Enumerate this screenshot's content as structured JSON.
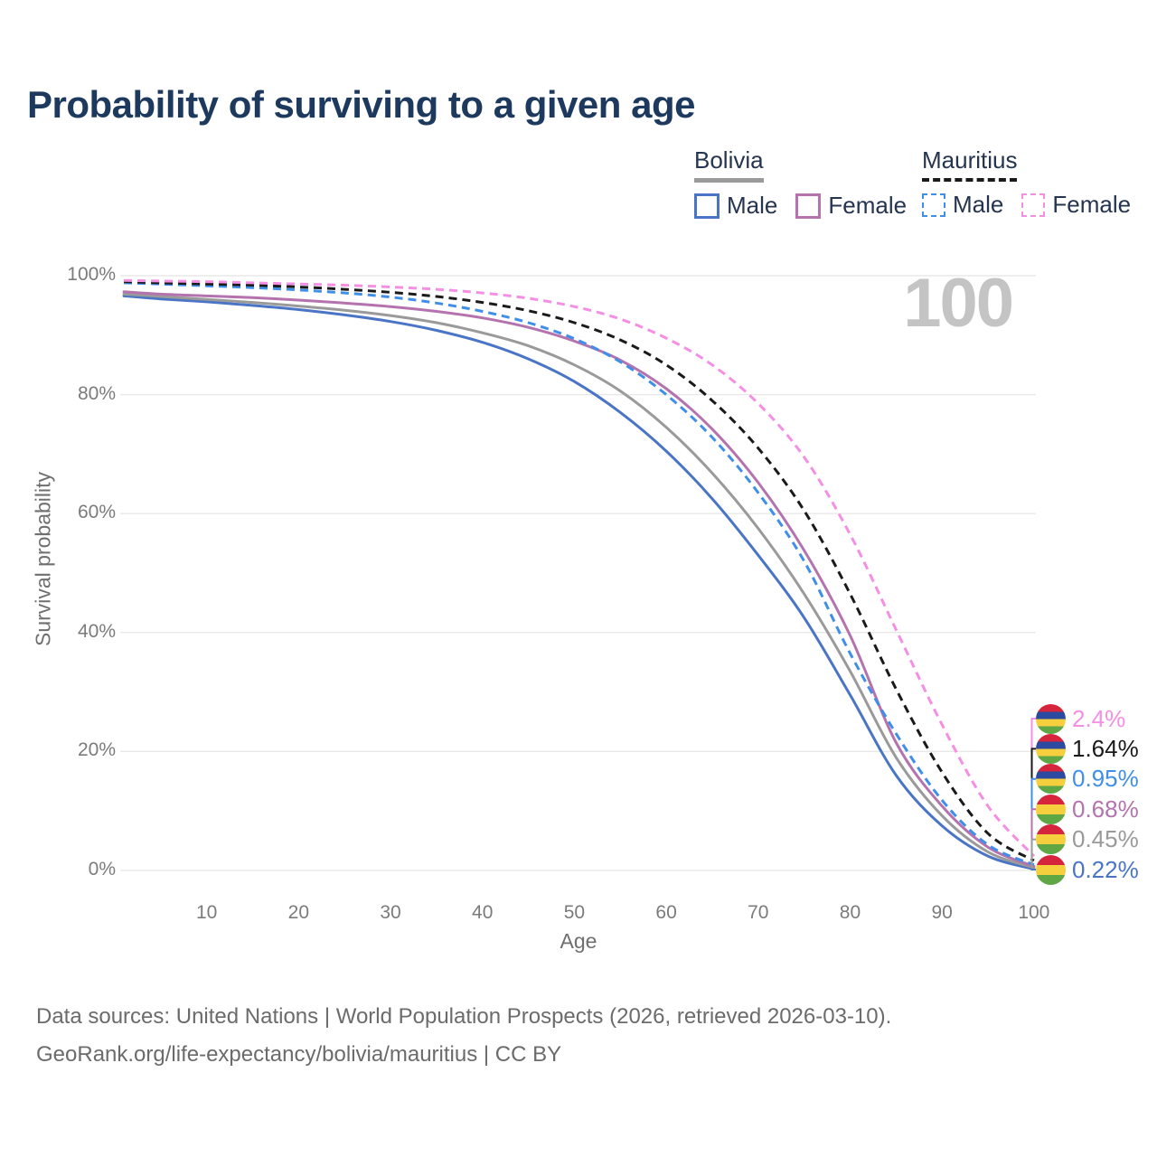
{
  "page": {
    "title": "Probability of surviving to a given age",
    "watermark": "100",
    "footer_line1": "Data sources: United Nations | World Population Prospects (2026, retrieved 2026-03-10).",
    "footer_line2": "GeoRank.org/life-expectancy/bolivia/mauritius | CC BY"
  },
  "legend": {
    "groups": [
      {
        "id": "bolivia",
        "label": "Bolivia",
        "line_style": "solid",
        "line_color": "#9a9a9a",
        "items": [
          {
            "id": "bolivia-male",
            "label": "Male",
            "color": "#4a74c6",
            "dashed": false
          },
          {
            "id": "bolivia-female",
            "label": "Female",
            "color": "#b473ae",
            "dashed": false
          }
        ]
      },
      {
        "id": "mauritius",
        "label": "Mauritius",
        "line_style": "dashed",
        "line_color": "#1a1a1a",
        "items": [
          {
            "id": "mauritius-male",
            "label": "Male",
            "color": "#3f8fe9",
            "dashed": true
          },
          {
            "id": "mauritius-female",
            "label": "Female",
            "color": "#f48fe4",
            "dashed": true
          }
        ]
      }
    ]
  },
  "chart_data": {
    "type": "line",
    "title": "Probability of surviving to a given age",
    "xlabel": "Age",
    "ylabel": "Survival probability",
    "xlim": [
      1,
      100
    ],
    "ylim": [
      0,
      100
    ],
    "grid": "horizontal",
    "legend_position": "top-right",
    "xticks": [
      10,
      20,
      30,
      40,
      50,
      60,
      70,
      80,
      90,
      100
    ],
    "yticks": [
      {
        "value": 0,
        "label": "0%"
      },
      {
        "value": 20,
        "label": "20%"
      },
      {
        "value": 40,
        "label": "40%"
      },
      {
        "value": 60,
        "label": "60%"
      },
      {
        "value": 80,
        "label": "80%"
      },
      {
        "value": 100,
        "label": "100%"
      }
    ],
    "x": [
      1,
      5,
      10,
      15,
      20,
      25,
      30,
      35,
      40,
      45,
      50,
      55,
      60,
      65,
      70,
      75,
      80,
      85,
      90,
      95,
      100
    ],
    "series": [
      {
        "name": "Bolivia Male",
        "country": "Bolivia",
        "sex": "Male",
        "color": "#4a74c6",
        "dashed": false,
        "flag": "bolivia",
        "end_label": "0.22%",
        "values": [
          96.6,
          96.1,
          95.6,
          95.0,
          94.3,
          93.4,
          92.3,
          90.8,
          88.8,
          86.0,
          82.2,
          77.0,
          70.5,
          62.5,
          53.0,
          42.5,
          29.5,
          16.0,
          7.5,
          2.4,
          0.22
        ]
      },
      {
        "name": "Bolivia",
        "country": "Bolivia",
        "sex": "Both",
        "color": "#9a9a9a",
        "dashed": false,
        "flag": "bolivia",
        "end_label": "0.45%",
        "values": [
          96.9,
          96.5,
          96.0,
          95.5,
          94.9,
          94.2,
          93.3,
          92.1,
          90.4,
          88.2,
          85.0,
          80.6,
          74.5,
          66.8,
          57.5,
          46.5,
          33.5,
          19.0,
          9.2,
          3.1,
          0.45
        ]
      },
      {
        "name": "Bolivia Female",
        "country": "Bolivia",
        "sex": "Female",
        "color": "#b473ae",
        "dashed": false,
        "flag": "bolivia",
        "end_label": "0.68%",
        "values": [
          97.3,
          96.9,
          96.6,
          96.3,
          95.9,
          95.4,
          94.8,
          94.0,
          92.9,
          91.3,
          89.0,
          85.8,
          81.0,
          74.2,
          65.2,
          53.8,
          39.5,
          21.5,
          10.8,
          3.9,
          0.68
        ]
      },
      {
        "name": "Mauritius Male",
        "country": "Mauritius",
        "sex": "Male",
        "color": "#3f8fe9",
        "dashed": true,
        "flag": "mauritius",
        "end_label": "0.95%",
        "values": [
          98.8,
          98.6,
          98.3,
          98.0,
          97.6,
          97.1,
          96.4,
          95.4,
          94.0,
          92.1,
          89.4,
          85.5,
          80.0,
          72.8,
          63.5,
          52.0,
          36.5,
          23.0,
          11.8,
          4.3,
          0.95
        ]
      },
      {
        "name": "Mauritius",
        "country": "Mauritius",
        "sex": "Both",
        "color": "#1a1a1a",
        "dashed": true,
        "flag": "mauritius",
        "end_label": "1.64%",
        "values": [
          99.0,
          98.8,
          98.6,
          98.4,
          98.1,
          97.7,
          97.2,
          96.5,
          95.5,
          94.1,
          92.1,
          89.2,
          85.0,
          79.0,
          71.0,
          60.5,
          46.5,
          30.5,
          16.5,
          6.2,
          1.64
        ]
      },
      {
        "name": "Mauritius Female",
        "country": "Mauritius",
        "sex": "Female",
        "color": "#f48fe4",
        "dashed": true,
        "flag": "mauritius",
        "end_label": "2.4%",
        "values": [
          99.2,
          99.1,
          99.0,
          98.8,
          98.6,
          98.4,
          98.1,
          97.7,
          97.1,
          96.2,
          94.8,
          92.7,
          89.5,
          85.0,
          78.5,
          69.5,
          56.5,
          40.5,
          24.5,
          10.8,
          2.4
        ]
      }
    ]
  }
}
